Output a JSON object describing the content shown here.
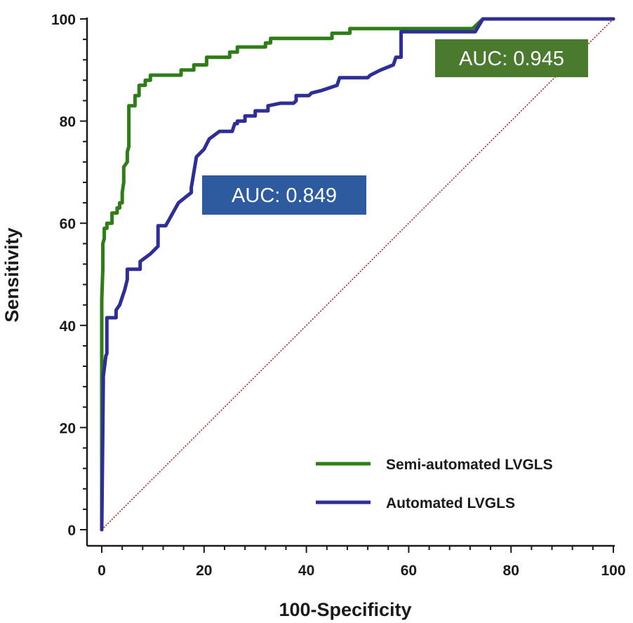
{
  "chart_data": {
    "type": "line",
    "title": "",
    "xlabel": "100-Specificity",
    "ylabel": "Sensitivity",
    "xlim": [
      0,
      100
    ],
    "ylim": [
      0,
      100
    ],
    "xticks": [
      0,
      20,
      40,
      60,
      80,
      100
    ],
    "yticks": [
      0,
      20,
      40,
      60,
      80,
      100
    ],
    "grid": false,
    "legend_position": "bottom-right",
    "reference_line": {
      "name": "chance",
      "x": [
        0,
        100
      ],
      "y": [
        0,
        100
      ],
      "color": "#b22222",
      "style": "dotted"
    },
    "series": [
      {
        "name": "Semi-automated LVGLS",
        "color": "#2e7d16",
        "auc_label": "AUC: 0.945",
        "label_color": "#4a7a2e",
        "x": [
          0,
          0,
          0.2,
          0.2,
          0.5,
          0.5,
          1.0,
          1.0,
          2.0,
          2.0,
          3.0,
          3.0,
          3.5,
          3.5,
          4.0,
          4.0,
          4.3,
          4.3,
          5.0,
          5.0,
          5.3,
          5.3,
          6.5,
          6.5,
          7.3,
          7.3,
          8.5,
          8.5,
          9.5,
          9.5,
          15.5,
          15.5,
          18,
          18,
          20.5,
          20.5,
          25,
          25,
          26.5,
          26.5,
          32,
          32,
          33,
          33,
          45,
          45,
          48.5,
          48.5,
          72.5,
          74.5,
          100
        ],
        "y": [
          0,
          45,
          51,
          56,
          57,
          59,
          59,
          60,
          60,
          62,
          62,
          63,
          63,
          64,
          64,
          66,
          68,
          71,
          72,
          74,
          75,
          83,
          83,
          85,
          85,
          87,
          87,
          88,
          88,
          89,
          89,
          90,
          90,
          91,
          91,
          92.5,
          92.5,
          93.5,
          93.5,
          94.5,
          94.5,
          95.3,
          95.3,
          96.2,
          96.2,
          97.2,
          97.2,
          98.1,
          98.1,
          100,
          100
        ]
      },
      {
        "name": "Automated LVGLS",
        "color": "#2e2e96",
        "auc_label": "AUC: 0.849",
        "label_color": "#2e5ba0",
        "x": [
          0,
          0.3,
          0.3,
          0.8,
          0.8,
          1.0,
          1.0,
          2.8,
          2.8,
          3.5,
          4.5,
          5.0,
          5.0,
          7.5,
          7.5,
          9.5,
          11,
          11,
          12.5,
          15,
          17.5,
          17.5,
          18.5,
          20,
          21,
          23,
          25.5,
          26,
          26.5,
          26.5,
          28,
          28,
          30,
          30,
          32.5,
          32.5,
          35,
          37.5,
          38,
          38,
          40.5,
          41,
          43,
          46,
          46.5,
          52,
          52.5,
          54.5,
          57,
          57.5,
          58.5,
          58.5,
          73,
          74.5,
          100
        ],
        "y": [
          0,
          29,
          30,
          34,
          34,
          34.5,
          41.5,
          41.5,
          43,
          44,
          47,
          49,
          51,
          51,
          52.5,
          54,
          55.5,
          59.5,
          59.5,
          64,
          66,
          67,
          73,
          74.5,
          76.5,
          78,
          78,
          79.5,
          79.5,
          80,
          80,
          81,
          81,
          82,
          82,
          83,
          83.5,
          83.5,
          84,
          85,
          85,
          85.5,
          86,
          87,
          88.5,
          88.5,
          89,
          90,
          91,
          92.5,
          92.5,
          97.5,
          97.5,
          100,
          100
        ]
      }
    ]
  }
}
